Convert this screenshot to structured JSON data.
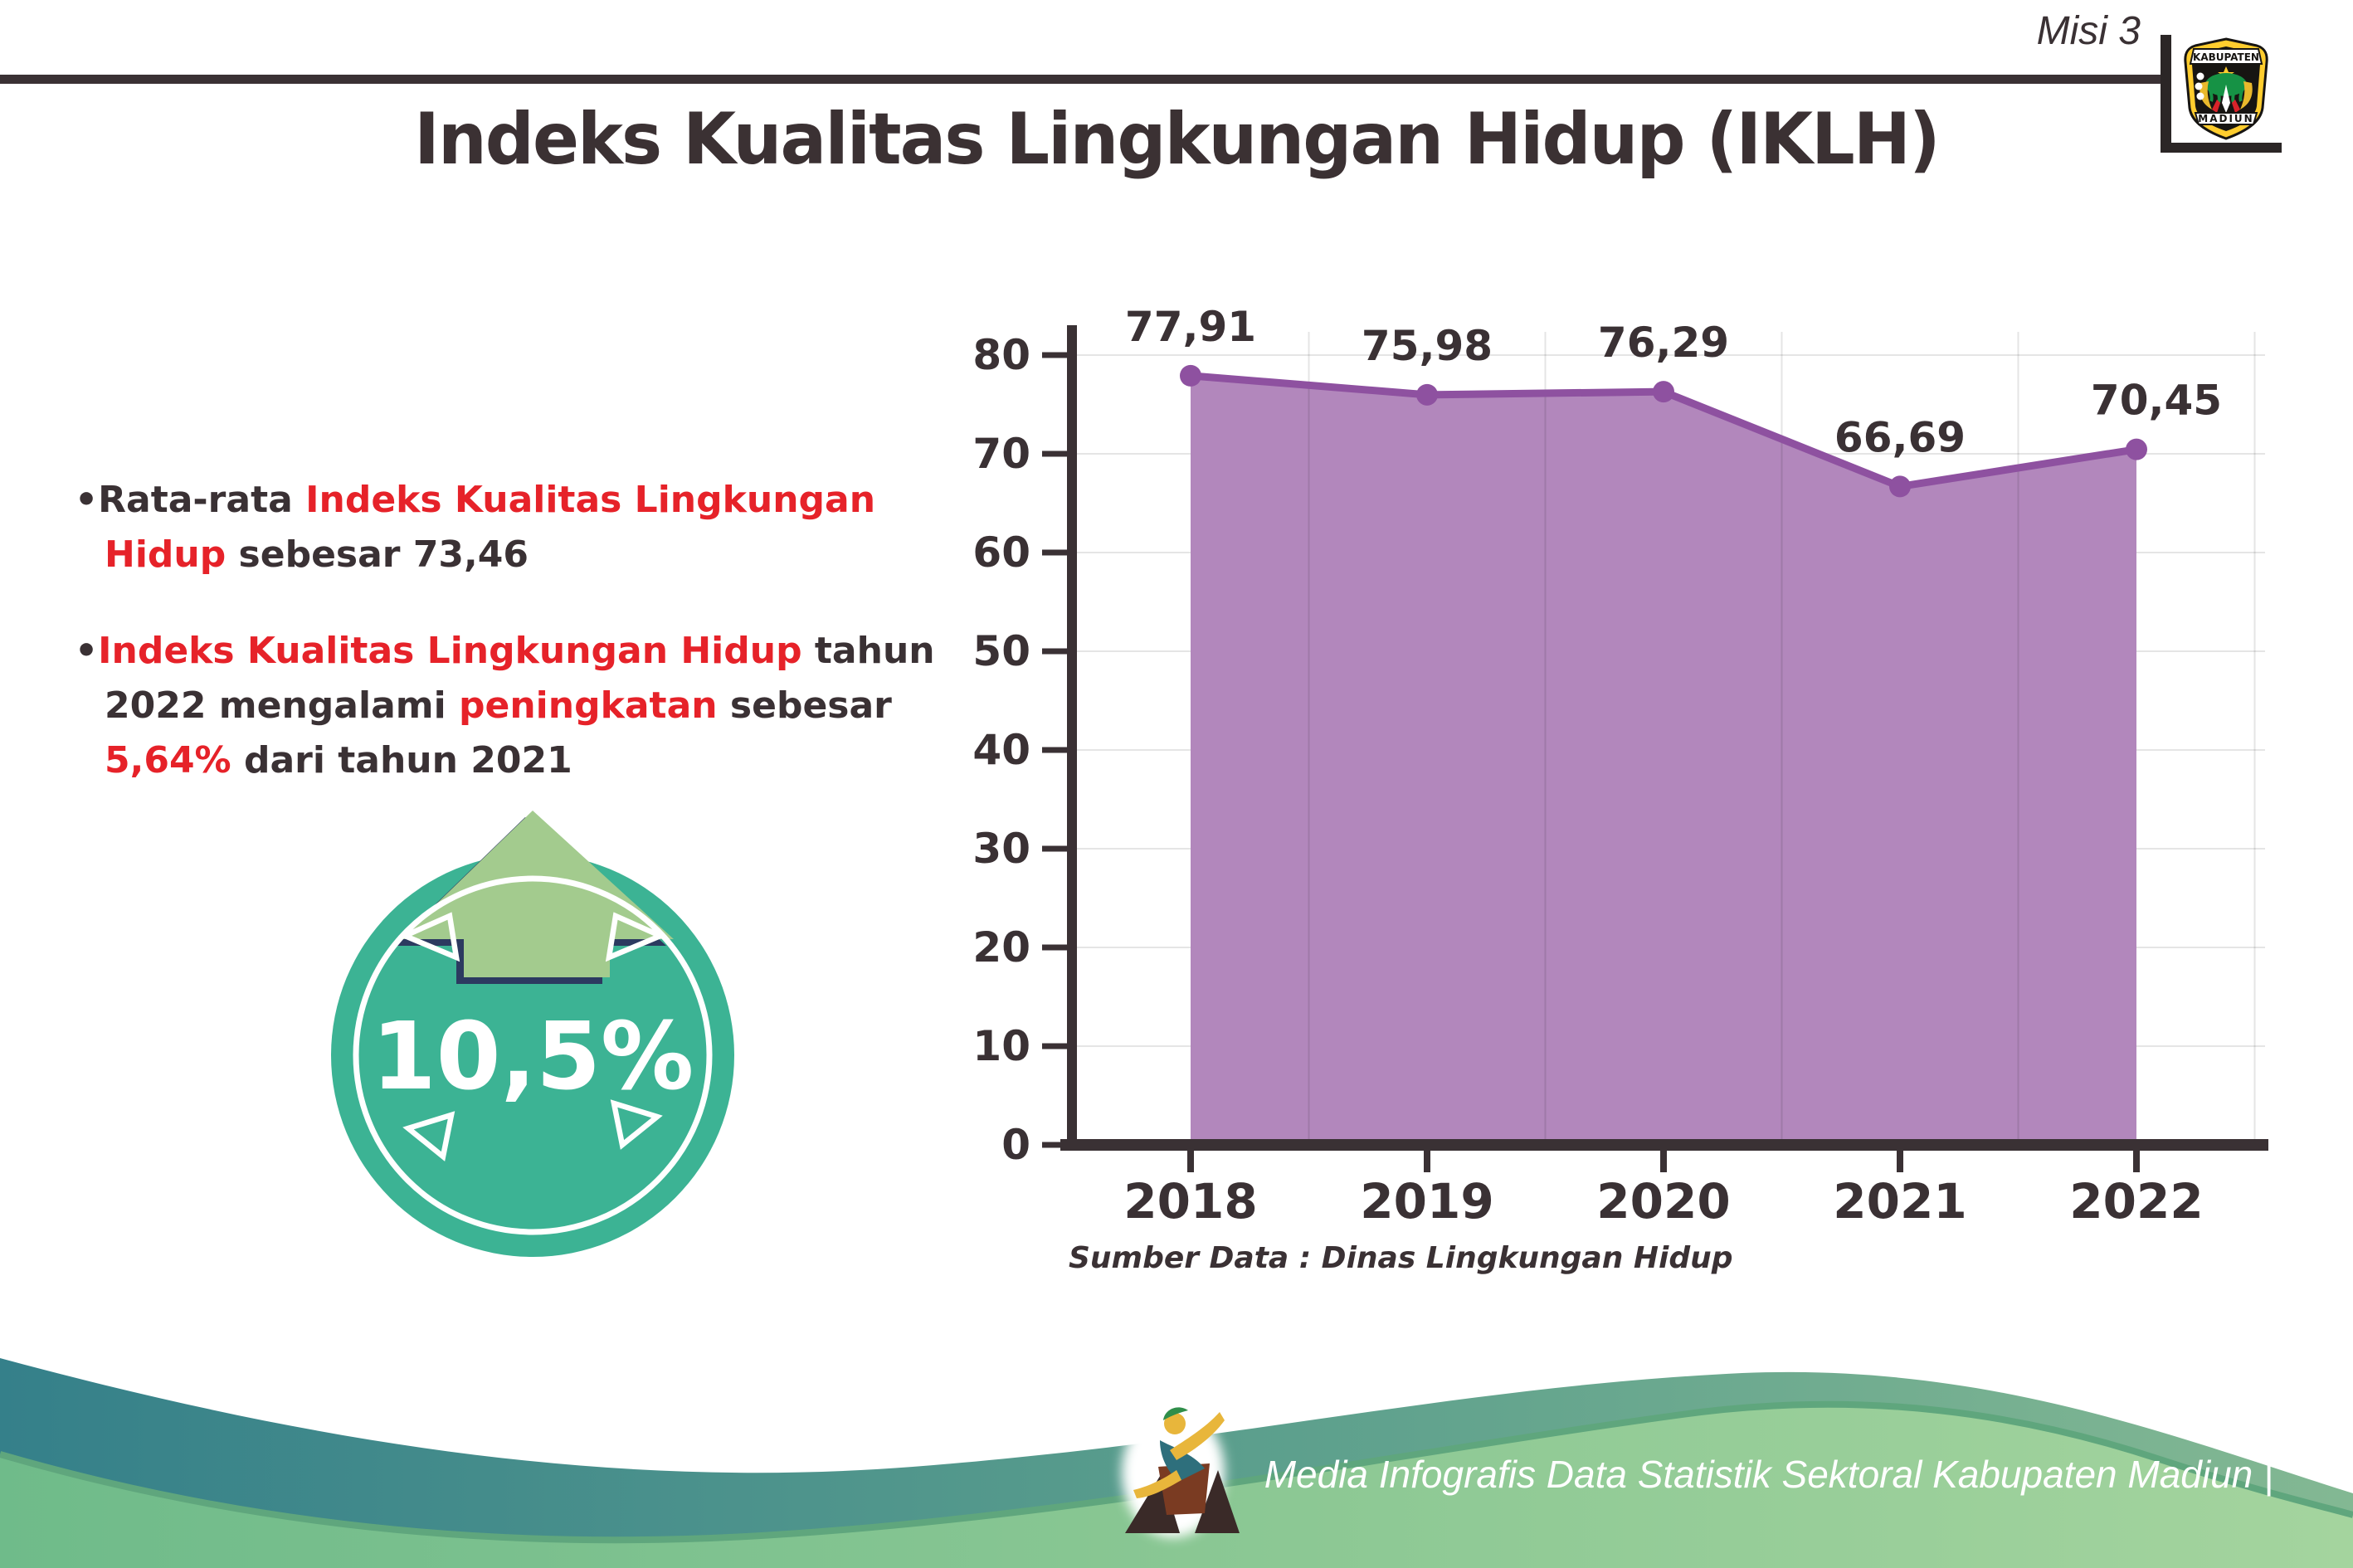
{
  "header": {
    "misi_label": "Misi 3",
    "logo": {
      "top_text": "KABUPATEN",
      "bottom_text": "MADIUN"
    }
  },
  "title": "Indeks Kualitas Lingkungan Hidup (IKLH)",
  "insights": {
    "bullet_glyph": "•",
    "item1": {
      "pre": "Rata-rata ",
      "highlight": "Indeks Kualitas Lingkungan Hidup",
      "post": " sebesar 73,46"
    },
    "item2": {
      "h1": "Indeks Kualitas Lingkungan Hidup",
      "t1": " tahun 2022 mengalami ",
      "h2": "peningkatan",
      "t2": " sebesar ",
      "h3": "5,64%",
      "t3": " dari tahun 2021"
    }
  },
  "badge": {
    "value": "10,5%"
  },
  "chart_data": {
    "type": "area",
    "categories": [
      "2018",
      "2019",
      "2020",
      "2021",
      "2022"
    ],
    "values": [
      77.91,
      75.98,
      76.29,
      66.69,
      70.45
    ],
    "point_labels": [
      "77,91",
      "75,98",
      "76,29",
      "66,69",
      "70,45"
    ],
    "title": "",
    "xlabel": "",
    "ylabel": "",
    "ylim": [
      0,
      80
    ],
    "ytick_step": 10,
    "grid": true,
    "legend": "none",
    "fill_color": "#b287bc",
    "line_color": "#8e51a0"
  },
  "source_note": "Sumber Data : Dinas Lingkungan Hidup",
  "footer": {
    "credit": "Media Infografis Data Statistik Sektoral Kabupaten Madiun |"
  },
  "colors": {
    "dark_text": "#3a3134",
    "accent_red": "#e62229",
    "chart_fill": "#b287bc",
    "chart_line": "#8e51a0",
    "badge_teal": "#3cb394",
    "arrow_green": "#a3cb8e",
    "arrow_outline_navy": "#2c3a60",
    "footer_wave_teal": "#35808a",
    "footer_wave_green": "#8cc894"
  }
}
